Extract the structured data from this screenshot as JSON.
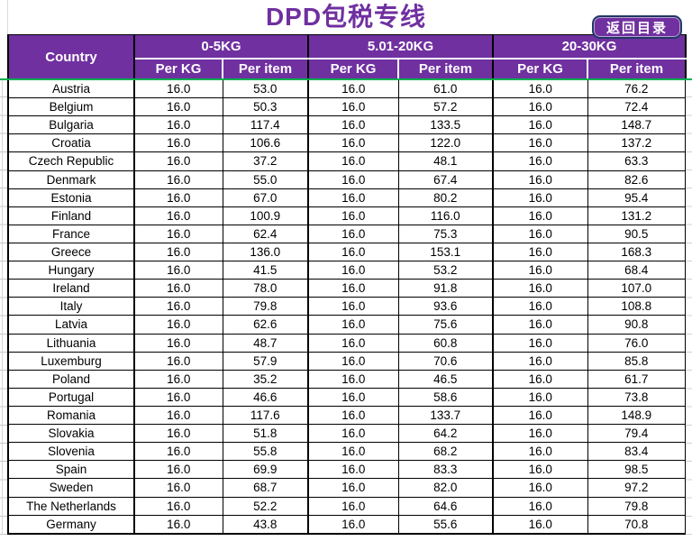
{
  "title": "DPD包税专线",
  "back_button": "返回目录",
  "colors": {
    "purple": "#7030A0",
    "navy": "#1F3864",
    "green": "#00B050"
  },
  "table": {
    "country_header": "Country",
    "groups": [
      {
        "label": "0-5KG"
      },
      {
        "label": "5.01-20KG"
      },
      {
        "label": "20-30KG"
      }
    ],
    "sub_headers": [
      "Per KG",
      "Per item"
    ],
    "rows": [
      {
        "country": "Austria",
        "values": [
          "16.0",
          "53.0",
          "16.0",
          "61.0",
          "16.0",
          "76.2"
        ]
      },
      {
        "country": "Belgium",
        "values": [
          "16.0",
          "50.3",
          "16.0",
          "57.2",
          "16.0",
          "72.4"
        ]
      },
      {
        "country": "Bulgaria",
        "values": [
          "16.0",
          "117.4",
          "16.0",
          "133.5",
          "16.0",
          "148.7"
        ]
      },
      {
        "country": "Croatia",
        "values": [
          "16.0",
          "106.6",
          "16.0",
          "122.0",
          "16.0",
          "137.2"
        ]
      },
      {
        "country": "Czech Republic",
        "values": [
          "16.0",
          "37.2",
          "16.0",
          "48.1",
          "16.0",
          "63.3"
        ]
      },
      {
        "country": "Denmark",
        "values": [
          "16.0",
          "55.0",
          "16.0",
          "67.4",
          "16.0",
          "82.6"
        ]
      },
      {
        "country": "Estonia",
        "values": [
          "16.0",
          "67.0",
          "16.0",
          "80.2",
          "16.0",
          "95.4"
        ]
      },
      {
        "country": "Finland",
        "values": [
          "16.0",
          "100.9",
          "16.0",
          "116.0",
          "16.0",
          "131.2"
        ]
      },
      {
        "country": "France",
        "values": [
          "16.0",
          "62.4",
          "16.0",
          "75.3",
          "16.0",
          "90.5"
        ]
      },
      {
        "country": "Greece",
        "values": [
          "16.0",
          "136.0",
          "16.0",
          "153.1",
          "16.0",
          "168.3"
        ]
      },
      {
        "country": "Hungary",
        "values": [
          "16.0",
          "41.5",
          "16.0",
          "53.2",
          "16.0",
          "68.4"
        ]
      },
      {
        "country": "Ireland",
        "values": [
          "16.0",
          "78.0",
          "16.0",
          "91.8",
          "16.0",
          "107.0"
        ]
      },
      {
        "country": "Italy",
        "values": [
          "16.0",
          "79.8",
          "16.0",
          "93.6",
          "16.0",
          "108.8"
        ]
      },
      {
        "country": "Latvia",
        "values": [
          "16.0",
          "62.6",
          "16.0",
          "75.6",
          "16.0",
          "90.8"
        ]
      },
      {
        "country": "Lithuania",
        "values": [
          "16.0",
          "48.7",
          "16.0",
          "60.8",
          "16.0",
          "76.0"
        ]
      },
      {
        "country": "Luxemburg",
        "values": [
          "16.0",
          "57.9",
          "16.0",
          "70.6",
          "16.0",
          "85.8"
        ]
      },
      {
        "country": "Poland",
        "values": [
          "16.0",
          "35.2",
          "16.0",
          "46.5",
          "16.0",
          "61.7"
        ]
      },
      {
        "country": "Portugal",
        "values": [
          "16.0",
          "46.6",
          "16.0",
          "58.6",
          "16.0",
          "73.8"
        ]
      },
      {
        "country": "Romania",
        "values": [
          "16.0",
          "117.6",
          "16.0",
          "133.7",
          "16.0",
          "148.9"
        ]
      },
      {
        "country": "Slovakia",
        "values": [
          "16.0",
          "51.8",
          "16.0",
          "64.2",
          "16.0",
          "79.4"
        ]
      },
      {
        "country": "Slovenia",
        "values": [
          "16.0",
          "55.8",
          "16.0",
          "68.2",
          "16.0",
          "83.4"
        ]
      },
      {
        "country": "Spain",
        "values": [
          "16.0",
          "69.9",
          "16.0",
          "83.3",
          "16.0",
          "98.5"
        ]
      },
      {
        "country": "Sweden",
        "values": [
          "16.0",
          "68.7",
          "16.0",
          "82.0",
          "16.0",
          "97.2"
        ]
      },
      {
        "country": "The Netherlands",
        "values": [
          "16.0",
          "52.2",
          "16.0",
          "64.6",
          "16.0",
          "79.8"
        ]
      },
      {
        "country": "Germany",
        "values": [
          "16.0",
          "43.8",
          "16.0",
          "55.6",
          "16.0",
          "70.8"
        ]
      }
    ]
  }
}
